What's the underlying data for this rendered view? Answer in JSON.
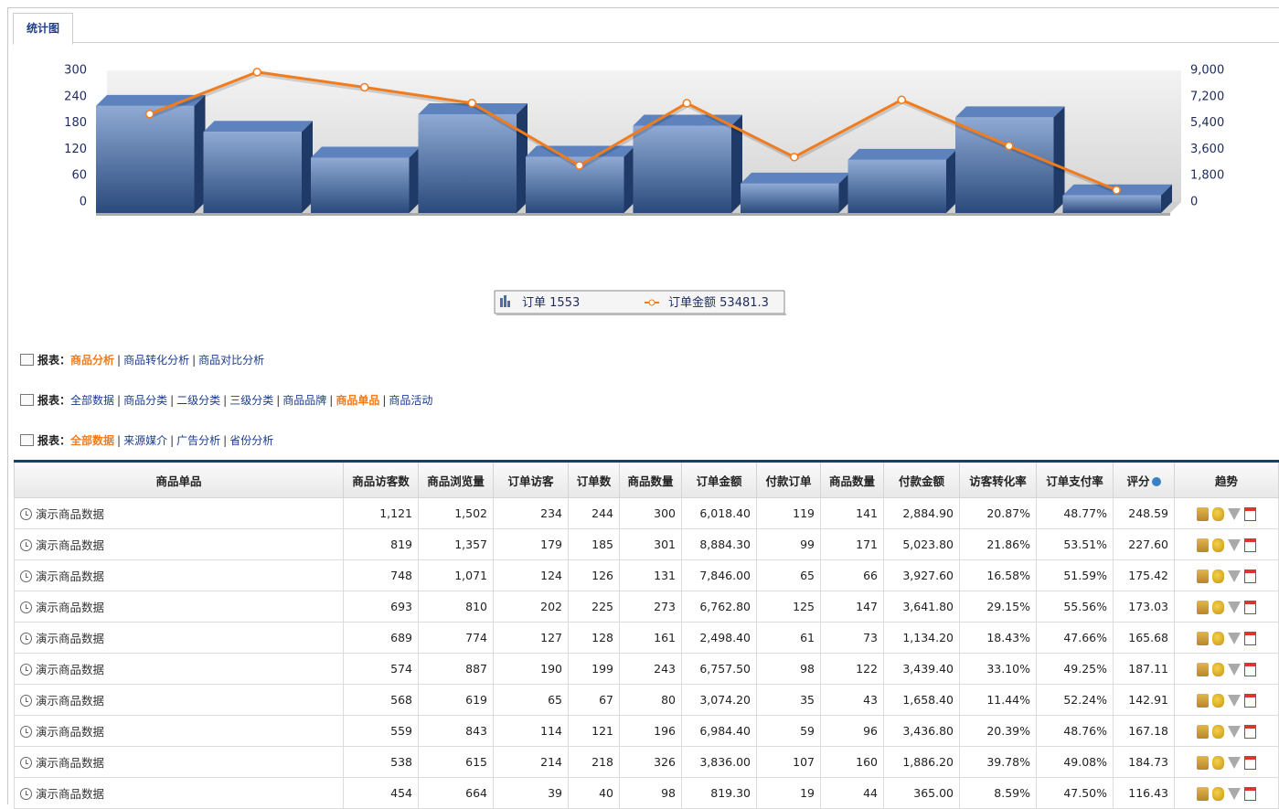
{
  "tab": "统计图",
  "chart_data": {
    "type": "bar_line",
    "categories": [
      null,
      null,
      null,
      null,
      null,
      null,
      null,
      null,
      null,
      null
    ],
    "series": [
      {
        "name": "订单",
        "total": 1553,
        "color": "#4a6fa5",
        "axis": "y",
        "values": [
          244,
          185,
          126,
          225,
          128,
          199,
          67,
          121,
          218,
          40
        ]
      },
      {
        "name": "订单金额",
        "total": 53481.3,
        "color": "#f07c1e",
        "axis": "y2",
        "values": [
          6018.4,
          8884.3,
          7846.0,
          6762.8,
          2498.4,
          6757.5,
          3074.2,
          6984.4,
          3836.0,
          819.3
        ]
      }
    ],
    "ylim": [
      0,
      300
    ],
    "yticks": [
      0,
      60,
      120,
      180,
      240,
      300
    ],
    "y2lim": [
      0,
      9000
    ],
    "y2ticks": [
      0,
      {
        "value": 1800,
        "label": "1,800"
      },
      {
        "value": 3600,
        "label": "3,600"
      },
      {
        "value": 5400,
        "label": "5,400"
      },
      {
        "value": 7200,
        "label": "7,200"
      },
      {
        "value": 9000,
        "label": "9,000"
      }
    ]
  },
  "reports": [
    {
      "label": "报表：",
      "links": [
        "商品分析",
        "商品转化分析",
        "商品对比分析"
      ],
      "active": 0
    },
    {
      "label": "报表：",
      "links": [
        "全部数据",
        "商品分类",
        "二级分类",
        "三级分类",
        "商品品牌",
        "商品单品",
        "商品活动"
      ],
      "active": 5
    },
    {
      "label": "报表：",
      "links": [
        "全部数据",
        "来源媒介",
        "广告分析",
        "省份分析"
      ],
      "active": 0
    }
  ],
  "table": {
    "header": [
      "商品单品",
      "商品访客数",
      "商品浏览量",
      "订单访客",
      "订单数",
      "商品数量",
      "订单金额",
      "付款订单",
      "商品数量",
      "付款金额",
      "访客转化率",
      "订单支付率",
      "评分",
      "趋势"
    ],
    "rows": [
      [
        "演示商品数据",
        "1,121",
        "1,502",
        "234",
        "244",
        "300",
        "6,018.40",
        "119",
        "141",
        "2,884.90",
        "20.87%",
        "48.77%",
        "248.59"
      ],
      [
        "演示商品数据",
        "819",
        "1,357",
        "179",
        "185",
        "301",
        "8,884.30",
        "99",
        "171",
        "5,023.80",
        "21.86%",
        "53.51%",
        "227.60"
      ],
      [
        "演示商品数据",
        "748",
        "1,071",
        "124",
        "126",
        "131",
        "7,846.00",
        "65",
        "66",
        "3,927.60",
        "16.58%",
        "51.59%",
        "175.42"
      ],
      [
        "演示商品数据",
        "693",
        "810",
        "202",
        "225",
        "273",
        "6,762.80",
        "125",
        "147",
        "3,641.80",
        "29.15%",
        "55.56%",
        "173.03"
      ],
      [
        "演示商品数据",
        "689",
        "774",
        "127",
        "128",
        "161",
        "2,498.40",
        "61",
        "73",
        "1,134.20",
        "18.43%",
        "47.66%",
        "165.68"
      ],
      [
        "演示商品数据",
        "574",
        "887",
        "190",
        "199",
        "243",
        "6,757.50",
        "98",
        "122",
        "3,439.40",
        "33.10%",
        "49.25%",
        "187.11"
      ],
      [
        "演示商品数据",
        "568",
        "619",
        "65",
        "67",
        "80",
        "3,074.20",
        "35",
        "43",
        "1,658.40",
        "11.44%",
        "52.24%",
        "142.91"
      ],
      [
        "演示商品数据",
        "559",
        "843",
        "114",
        "121",
        "196",
        "6,984.40",
        "59",
        "96",
        "3,436.80",
        "20.39%",
        "48.76%",
        "167.18"
      ],
      [
        "演示商品数据",
        "538",
        "615",
        "214",
        "218",
        "326",
        "3,836.00",
        "107",
        "160",
        "1,886.20",
        "39.78%",
        "49.08%",
        "184.73"
      ],
      [
        "演示商品数据",
        "454",
        "664",
        "39",
        "40",
        "98",
        "819.30",
        "19",
        "44",
        "365.00",
        "8.59%",
        "47.50%",
        "116.43"
      ]
    ]
  }
}
